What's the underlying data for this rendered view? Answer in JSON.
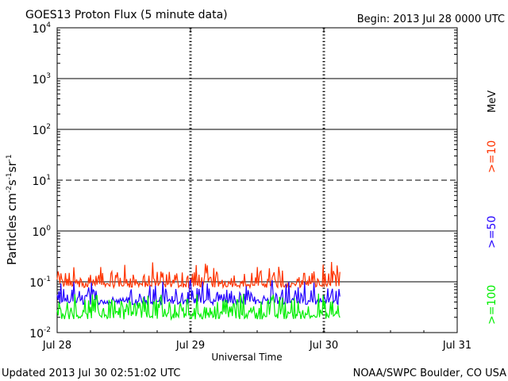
{
  "header": {
    "title": "GOES13 Proton Flux (5 minute data)",
    "begin": "Begin: 2013 Jul 28 0000 UTC"
  },
  "footer": {
    "updated": "Updated 2013 Jul 30 02:51:02 UTC",
    "credit": "NOAA/SWPC Boulder, CO USA"
  },
  "chart_data": {
    "type": "line",
    "title": "GOES13 Proton Flux (5 minute data)",
    "xlabel": "Universal Time",
    "ylabel": "Particles cm-2s-1sr-1",
    "ylabel_parts": {
      "base": "Particles cm",
      "e1": "-2",
      "mid1": "s",
      "e2": "-1",
      "mid2": "sr",
      "e3": "-1"
    },
    "yscale": "log",
    "ylim": [
      0.01,
      10000
    ],
    "yticks": [
      {
        "value": 10000,
        "base": "10",
        "exp": "4"
      },
      {
        "value": 1000,
        "base": "10",
        "exp": "3"
      },
      {
        "value": 100,
        "base": "10",
        "exp": "2"
      },
      {
        "value": 10,
        "base": "10",
        "exp": "1"
      },
      {
        "value": 1,
        "base": "10",
        "exp": "0"
      },
      {
        "value": 0.1,
        "base": "10",
        "exp": "-1"
      },
      {
        "value": 0.01,
        "base": "10",
        "exp": "-2"
      }
    ],
    "threshold_dashed": 10,
    "xlim_days": [
      0,
      3
    ],
    "xticks": [
      {
        "day": 0,
        "label": "Jul 28"
      },
      {
        "day": 1,
        "label": "Jul 29"
      },
      {
        "day": 2,
        "label": "Jul 30"
      },
      {
        "day": 3,
        "label": "Jul 31"
      }
    ],
    "day_markers": [
      1,
      2
    ],
    "data_end_day": 2.12,
    "legend_unit": "MeV",
    "series": [
      {
        "name": ">=10",
        "label": ">=10",
        "color": "#ff3300",
        "baseline": 0.095,
        "low": 0.07,
        "high": 0.25,
        "peak": 0.16
      },
      {
        "name": ">=50",
        "label": ">=50",
        "color": "#2200ff",
        "baseline": 0.045,
        "low": 0.032,
        "high": 0.11,
        "peak": 0.075
      },
      {
        "name": ">=100",
        "label": ">=100",
        "color": "#00ee00",
        "baseline": 0.025,
        "low": 0.016,
        "high": 0.06,
        "peak": 0.045
      }
    ]
  }
}
